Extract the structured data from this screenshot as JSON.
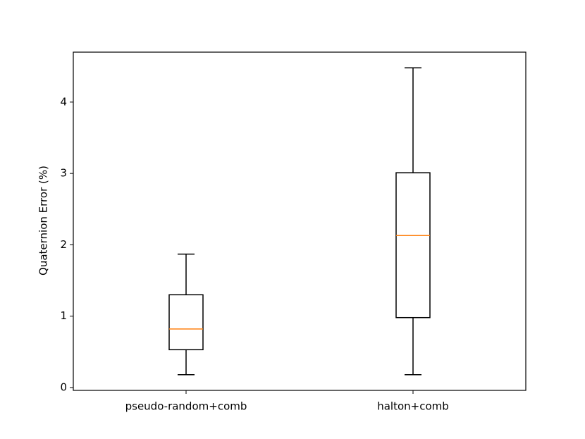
{
  "chart_data": {
    "type": "box",
    "y_label": "Quaternion Error (%)",
    "categories": [
      "pseudo-random+comb",
      "halton+comb"
    ],
    "min": [
      0.18,
      0.18
    ],
    "q1": [
      0.53,
      0.98
    ],
    "median": [
      0.82,
      2.13
    ],
    "q3": [
      1.3,
      3.01
    ],
    "max": [
      1.87,
      4.48
    ],
    "box_color": "#000000",
    "median_color": "#ff7f0e",
    "ylim": [
      -0.04,
      4.7
    ],
    "yticks": [
      0,
      1,
      2,
      3,
      4
    ],
    "grid": false
  }
}
